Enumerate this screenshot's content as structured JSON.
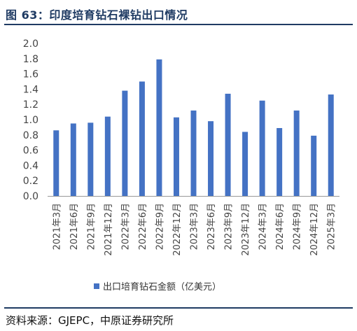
{
  "header": {
    "title": "图 63：印度培育钻石裸钻出口情况"
  },
  "chart_data": {
    "type": "bar",
    "categories": [
      "2021年3月",
      "2021年6月",
      "2021年9月",
      "2021年12月",
      "2022年3月",
      "2022年6月",
      "2022年9月",
      "2022年12月",
      "2023年3月",
      "2023年6月",
      "2023年9月",
      "2023年12月",
      "2024年3月",
      "2024年6月",
      "2024年9月",
      "2024年12月",
      "2025年3月"
    ],
    "series": [
      {
        "name": "出口培育钻石金额（亿美元）",
        "values": [
          0.86,
          0.95,
          0.96,
          1.04,
          1.38,
          1.5,
          1.79,
          1.03,
          1.12,
          0.98,
          1.34,
          0.84,
          1.25,
          0.89,
          1.12,
          0.79,
          1.33
        ]
      }
    ],
    "y_ticks": [
      "0.0",
      "0.2",
      "0.4",
      "0.6",
      "0.8",
      "1.0",
      "1.2",
      "1.4",
      "1.6",
      "1.8",
      "2.0"
    ],
    "ylim": [
      0,
      2.0
    ],
    "grid": false,
    "legend_position": "bottom",
    "bar_color": "#4472c4"
  },
  "footer": {
    "source": "资料来源：GJEPC，中原证券研究所"
  }
}
